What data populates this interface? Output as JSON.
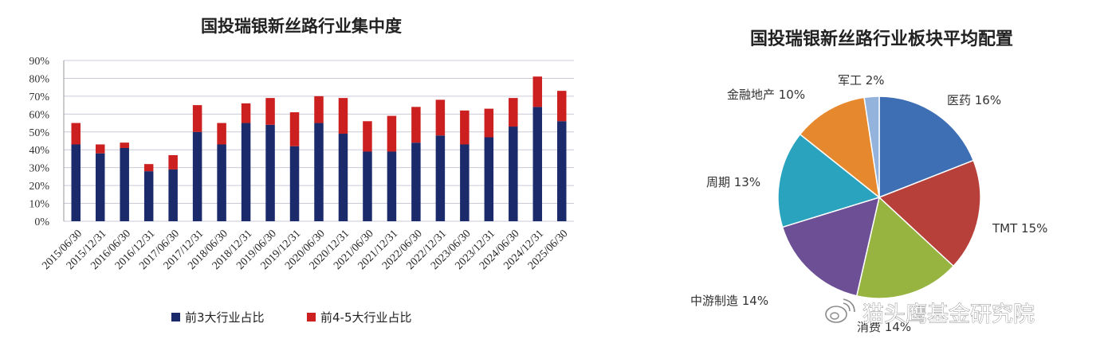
{
  "chart_data": [
    {
      "type": "bar",
      "stacked": true,
      "title": "国投瑞银新丝路行业集中度",
      "categories": [
        "2015/06/30",
        "2015/12/31",
        "2016/06/30",
        "2016/12/31",
        "2017/06/30",
        "2017/12/31",
        "2018/06/30",
        "2018/12/31",
        "2019/06/30",
        "2019/12/31",
        "2020/06/30",
        "2020/12/31",
        "2021/06/30",
        "2021/12/31",
        "2022/06/30",
        "2022/12/31",
        "2023/06/30",
        "2023/12/31",
        "2024/06/30",
        "2024/12/31",
        "2025/06/30"
      ],
      "series": [
        {
          "name": "前3大行业占比",
          "color": "#1b2a6b",
          "values": [
            43,
            38,
            41,
            28,
            29,
            50,
            43,
            55,
            54,
            42,
            55,
            49,
            39,
            39,
            44,
            48,
            43,
            47,
            53,
            64,
            56
          ]
        },
        {
          "name": "前4-5大行业占比",
          "color": "#cc1f1f",
          "values": [
            12,
            5,
            3,
            4,
            8,
            15,
            12,
            11,
            15,
            19,
            15,
            20,
            17,
            20,
            20,
            20,
            19,
            16,
            16,
            17,
            17
          ]
        }
      ],
      "ylim": [
        0,
        90
      ],
      "yticks": [
        "0%",
        "10%",
        "20%",
        "30%",
        "40%",
        "50%",
        "60%",
        "70%",
        "80%",
        "90%"
      ],
      "grid": true,
      "legend_position": "bottom"
    },
    {
      "type": "pie",
      "title": "国投瑞银新丝路行业板块平均配置",
      "slices": [
        {
          "label": "医药 16%",
          "value": 16,
          "color": "#3e6fb4"
        },
        {
          "label": "TMT 15%",
          "value": 15,
          "color": "#b8403a"
        },
        {
          "label": "消费 14%",
          "value": 14,
          "color": "#96b43f"
        },
        {
          "label": "中游制造 14%",
          "value": 14,
          "color": "#6c4f95"
        },
        {
          "label": "周期 13%",
          "value": 13,
          "color": "#2aa3bf"
        },
        {
          "label": "金融地产 10%",
          "value": 10,
          "color": "#e6892e"
        },
        {
          "label": "军工 2%",
          "value": 2,
          "color": "#94b3dc"
        }
      ]
    }
  ],
  "watermark": "猫头鹰基金研究院"
}
